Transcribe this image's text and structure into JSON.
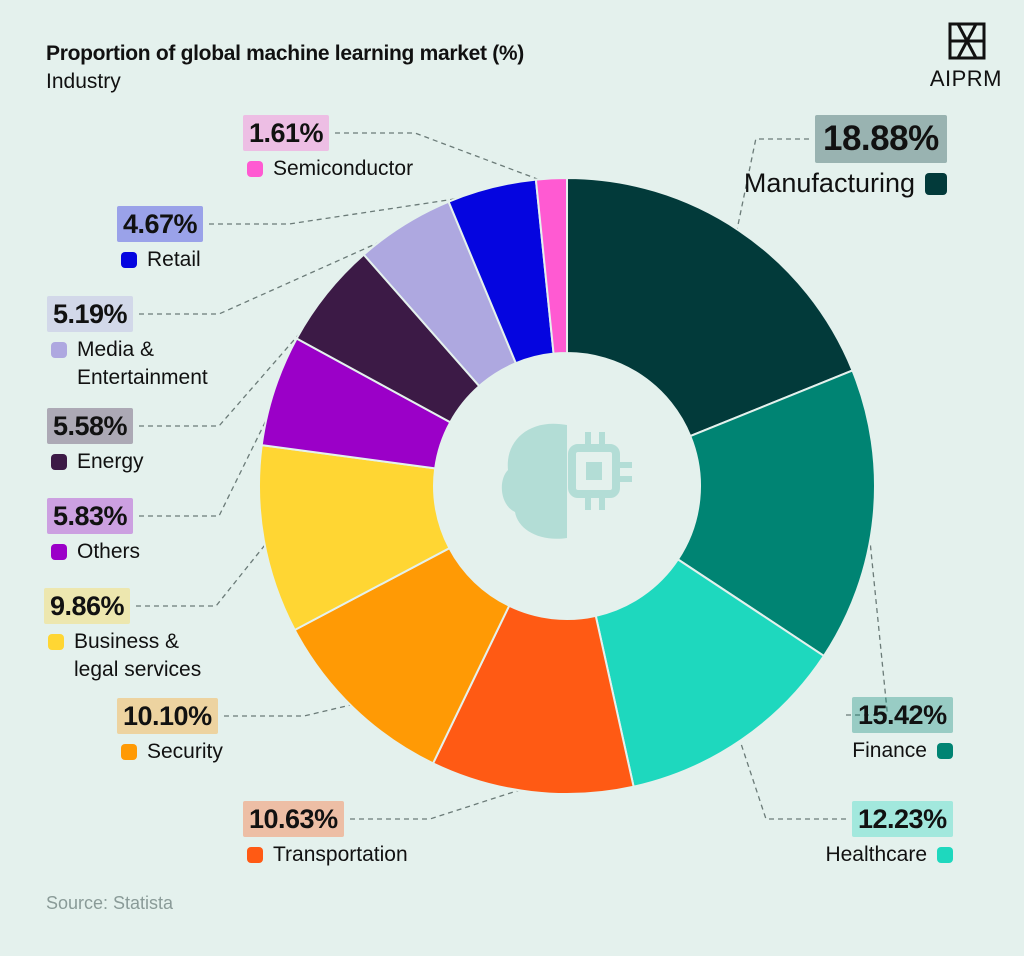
{
  "chart_data": {
    "type": "pie",
    "donut": true,
    "title": "Proportion of global machine learning market (%)",
    "subtitle": "Industry",
    "source": "Source: Statista",
    "brand": "AIPRM",
    "categories": [
      "Manufacturing",
      "Finance",
      "Healthcare",
      "Transportation",
      "Security",
      "Business & legal services",
      "Others",
      "Energy",
      "Media & Entertainment",
      "Retail",
      "Semiconductor"
    ],
    "values": [
      18.88,
      15.42,
      12.23,
      10.63,
      10.1,
      9.86,
      5.83,
      5.58,
      5.19,
      4.67,
      1.61
    ],
    "value_labels": [
      "18.88%",
      "15.42%",
      "12.23%",
      "10.63%",
      "10.10%",
      "9.86%",
      "5.83%",
      "5.58%",
      "5.19%",
      "4.67%",
      "1.61%"
    ],
    "colors": [
      "#023a3a",
      "#008473",
      "#1ed8be",
      "#ff5a14",
      "#ff9a05",
      "#ffd633",
      "#9b00c8",
      "#3c1a46",
      "#aea8e0",
      "#0505e0",
      "#ff5ad2"
    ]
  }
}
